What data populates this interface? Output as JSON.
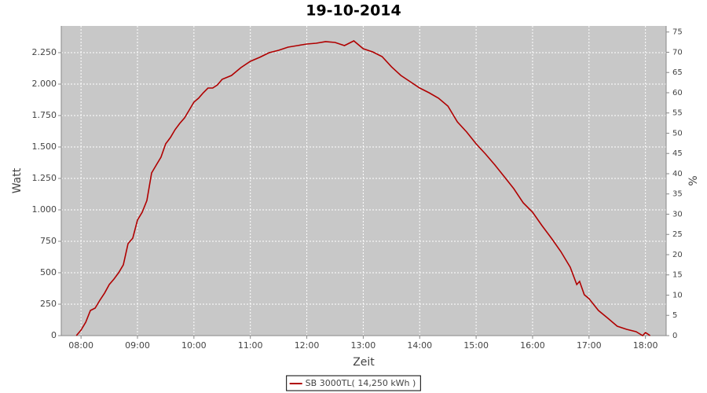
{
  "chart_data": {
    "type": "line",
    "title": "19-10-2014",
    "x_label": "Zeit",
    "y_label": "Watt",
    "y2_label": "%",
    "x": [
      "07:55",
      "08:00",
      "08:05",
      "08:10",
      "08:15",
      "08:20",
      "08:25",
      "08:30",
      "08:35",
      "08:40",
      "08:45",
      "08:50",
      "08:55",
      "09:00",
      "09:05",
      "09:10",
      "09:15",
      "09:20",
      "09:25",
      "09:30",
      "09:35",
      "09:40",
      "09:45",
      "09:50",
      "09:55",
      "10:00",
      "10:05",
      "10:10",
      "10:15",
      "10:20",
      "10:25",
      "10:30",
      "10:40",
      "10:50",
      "11:00",
      "11:10",
      "11:20",
      "11:30",
      "11:40",
      "11:50",
      "12:00",
      "12:10",
      "12:20",
      "12:30",
      "12:40",
      "12:50",
      "13:00",
      "13:10",
      "13:20",
      "13:30",
      "13:40",
      "13:50",
      "14:00",
      "14:10",
      "14:20",
      "14:30",
      "14:40",
      "14:50",
      "15:00",
      "15:10",
      "15:20",
      "15:30",
      "15:40",
      "15:50",
      "16:00",
      "16:10",
      "16:20",
      "16:30",
      "16:40",
      "16:47",
      "16:50",
      "16:55",
      "17:00",
      "17:10",
      "17:20",
      "17:30",
      "17:40",
      "17:50",
      "17:57",
      "18:00",
      "18:05"
    ],
    "series": [
      {
        "name": "SB 3000TL( 14,250 kWh )",
        "color": "#b00000",
        "values": [
          0,
          44,
          106,
          200,
          219,
          281,
          338,
          406,
          450,
          500,
          563,
          731,
          775,
          919,
          981,
          1075,
          1294,
          1356,
          1419,
          1525,
          1575,
          1638,
          1688,
          1731,
          1794,
          1856,
          1888,
          1931,
          1969,
          1969,
          1994,
          2038,
          2069,
          2131,
          2181,
          2213,
          2250,
          2269,
          2294,
          2306,
          2319,
          2325,
          2338,
          2331,
          2306,
          2344,
          2281,
          2256,
          2219,
          2138,
          2069,
          2019,
          1969,
          1931,
          1888,
          1825,
          1700,
          1619,
          1525,
          1444,
          1356,
          1263,
          1169,
          1056,
          981,
          875,
          775,
          669,
          544,
          406,
          431,
          325,
          294,
          200,
          138,
          75,
          50,
          31,
          0,
          25,
          0
        ]
      }
    ],
    "xlim": [
      "07:39",
      "18:22"
    ],
    "xticks": [
      "08:00",
      "09:00",
      "10:00",
      "11:00",
      "12:00",
      "13:00",
      "14:00",
      "15:00",
      "16:00",
      "17:00",
      "18:00"
    ],
    "ylim": [
      0,
      2462.5
    ],
    "yticks": [
      0,
      250,
      500,
      750,
      {
        "value": 1000,
        "label": "1.000"
      },
      {
        "value": 1250,
        "label": "1.250"
      },
      {
        "value": 1500,
        "label": "1.500"
      },
      {
        "value": 1750,
        "label": "1.750"
      },
      {
        "value": 2000,
        "label": "2.000"
      },
      {
        "value": 2250,
        "label": "2.250"
      }
    ],
    "y2lim": [
      0,
      76.5
    ],
    "y2ticks": [
      0,
      5,
      10,
      15,
      20,
      25,
      30,
      35,
      40,
      45,
      50,
      55,
      60,
      65,
      70,
      75
    ],
    "grid": true,
    "plot_background": "#c8c8c8"
  }
}
